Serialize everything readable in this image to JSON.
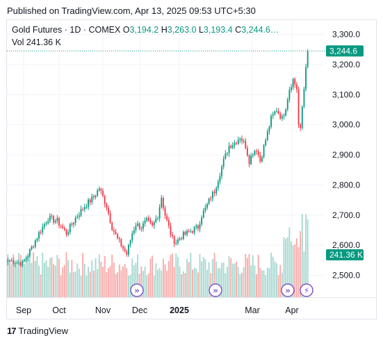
{
  "header": {
    "published": "Published on TradingView.com, Apr 13, 2025 09:53 UTC+5:30"
  },
  "legend": {
    "symbol": "Gold Futures · 1D · COMEX",
    "o_label": "O",
    "o_value": "3,194.2",
    "h_label": "H",
    "h_value": "3,263.0",
    "l_label": "L",
    "l_value": "3,193.4",
    "c_label": "C",
    "c_value": "3,244.6…",
    "vol_label": "Vol",
    "vol_value": "241.36 K"
  },
  "footer": {
    "brand": "TradingView",
    "logo_glyph": "17"
  },
  "colors": {
    "up": "#089981",
    "down": "#f23645",
    "vol_up": "#a5d8cf",
    "vol_down": "#f7a9a7",
    "event": "#7e57c2"
  },
  "chart_data": {
    "type": "candlestick",
    "price_axis": {
      "ticks": [
        "3,300.0",
        "3,200.0",
        "3,100.0",
        "3,000.0",
        "2,900.0",
        "2,800.0",
        "2,700.0",
        "2,600.0",
        "2,500.0"
      ],
      "range": [
        2420,
        3338
      ]
    },
    "price_tags": {
      "last": "3,244.6",
      "volume": "241.36 K"
    },
    "time_axis": [
      "Sep",
      "Oct",
      "Nov",
      "Dec",
      "2025",
      "Mar",
      "Apr"
    ],
    "events": [
      {
        "label": "Nov",
        "glyph": "»"
      },
      {
        "label": "2025",
        "glyph": "»"
      },
      {
        "label": "Apr",
        "glyph": "»"
      },
      {
        "label": "Apr",
        "glyph": "⚡"
      }
    ],
    "anchors": [
      [
        0,
        2550
      ],
      [
        8,
        2540
      ],
      [
        12,
        2580
      ],
      [
        17,
        2640
      ],
      [
        22,
        2690
      ],
      [
        27,
        2680
      ],
      [
        32,
        2640
      ],
      [
        37,
        2690
      ],
      [
        42,
        2730
      ],
      [
        47,
        2760
      ],
      [
        50,
        2790
      ],
      [
        54,
        2730
      ],
      [
        57,
        2660
      ],
      [
        60,
        2620
      ],
      [
        63,
        2590
      ],
      [
        65,
        2570
      ],
      [
        68,
        2640
      ],
      [
        70,
        2670
      ],
      [
        73,
        2660
      ],
      [
        76,
        2680
      ],
      [
        79,
        2660
      ],
      [
        82,
        2700
      ],
      [
        84,
        2760
      ],
      [
        86,
        2700
      ],
      [
        88,
        2660
      ],
      [
        90,
        2620
      ],
      [
        92,
        2610
      ],
      [
        95,
        2630
      ],
      [
        98,
        2640
      ],
      [
        101,
        2650
      ],
      [
        104,
        2660
      ],
      [
        106,
        2700
      ],
      [
        108,
        2720
      ],
      [
        111,
        2760
      ],
      [
        113,
        2780
      ],
      [
        115,
        2820
      ],
      [
        118,
        2880
      ],
      [
        121,
        2930
      ],
      [
        124,
        2940
      ],
      [
        127,
        2960
      ],
      [
        130,
        2930
      ],
      [
        132,
        2880
      ],
      [
        134,
        2910
      ],
      [
        136,
        2920
      ],
      [
        138,
        2880
      ],
      [
        141,
        2950
      ],
      [
        144,
        3020
      ],
      [
        147,
        3050
      ],
      [
        150,
        3020
      ],
      [
        152,
        3060
      ],
      [
        154,
        3120
      ],
      [
        156,
        3150
      ],
      [
        158,
        3120
      ],
      [
        159,
        3000
      ],
      [
        160,
        2980
      ],
      [
        161,
        3060
      ],
      [
        162,
        3120
      ],
      [
        163,
        3200
      ],
      [
        164,
        3245
      ]
    ]
  }
}
